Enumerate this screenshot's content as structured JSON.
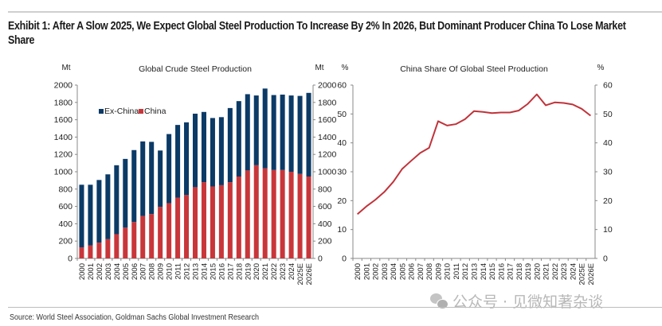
{
  "exhibit": {
    "title": "Exhibit 1: After A Slow 2025, We Expect Global Steel Production To Increase By 2% In 2026, But Dominant Producer China To Lose Market Share",
    "source": "Source: World Steel Association, Goldman Sachs Global Investment Research",
    "watermark": "公众号 · 见微知著杂谈"
  },
  "colors": {
    "ex_china": "#0b3a66",
    "china": "#c8363a",
    "line": "#c0333a",
    "axis": "#888888"
  },
  "chart_data": [
    {
      "type": "bar",
      "stacked": true,
      "title": "Global Crude Steel Production",
      "ylabel_left": "Mt",
      "ylabel_right": "Mt",
      "xlabel": "",
      "ylim": [
        0,
        2000
      ],
      "yticks": [
        0,
        200,
        400,
        600,
        800,
        1000,
        1200,
        1400,
        1600,
        1800,
        2000
      ],
      "grid": false,
      "legend": {
        "placement": "top-left",
        "entries": [
          "Ex-China",
          "China"
        ]
      },
      "categories": [
        "2000",
        "2001",
        "2002",
        "2003",
        "2004",
        "2005",
        "2006",
        "2007",
        "2008",
        "2009",
        "2010",
        "2011",
        "2012",
        "2013",
        "2014",
        "2015",
        "2016",
        "2017",
        "2018",
        "2019",
        "2020",
        "2021",
        "2022",
        "2023",
        "2024",
        "2025E",
        "2026E"
      ],
      "series": [
        {
          "name": "China",
          "values": [
            128,
            151,
            182,
            222,
            280,
            355,
            420,
            490,
            512,
            595,
            638,
            702,
            731,
            822,
            880,
            830,
            845,
            880,
            945,
            1015,
            1075,
            1040,
            1020,
            1020,
            1000,
            975,
            945
          ]
        },
        {
          "name": "Ex-China",
          "values": [
            722,
            699,
            723,
            748,
            795,
            793,
            830,
            860,
            833,
            650,
            797,
            838,
            839,
            848,
            810,
            790,
            785,
            855,
            870,
            880,
            805,
            920,
            865,
            870,
            880,
            900,
            965
          ]
        }
      ],
      "totals": [
        850,
        850,
        905,
        970,
        1075,
        1148,
        1250,
        1350,
        1345,
        1245,
        1435,
        1540,
        1570,
        1670,
        1690,
        1620,
        1630,
        1735,
        1815,
        1895,
        1880,
        1960,
        1885,
        1890,
        1880,
        1875,
        1910
      ]
    },
    {
      "type": "line",
      "title": "China Share Of Global Steel Production",
      "ylabel_left": "%",
      "ylabel_right": "%",
      "xlabel": "",
      "ylim": [
        0,
        60
      ],
      "yticks": [
        0,
        10,
        20,
        30,
        40,
        50,
        60
      ],
      "grid": false,
      "categories": [
        "2000",
        "2001",
        "2002",
        "2003",
        "2004",
        "2005",
        "2006",
        "2007",
        "2008",
        "2009",
        "2010",
        "2011",
        "2012",
        "2013",
        "2014",
        "2015",
        "2016",
        "2017",
        "2018",
        "2019",
        "2020",
        "2021",
        "2022",
        "2023",
        "2024",
        "2025E",
        "2026E"
      ],
      "series": [
        {
          "name": "China share",
          "values": [
            15.3,
            18.0,
            20.3,
            23.0,
            26.5,
            31.0,
            33.8,
            36.5,
            38.3,
            47.5,
            46.0,
            46.5,
            48.2,
            51.0,
            50.7,
            50.3,
            50.5,
            50.5,
            51.2,
            53.5,
            56.8,
            53.0,
            54.0,
            53.8,
            53.3,
            51.8,
            49.4
          ]
        }
      ]
    }
  ]
}
